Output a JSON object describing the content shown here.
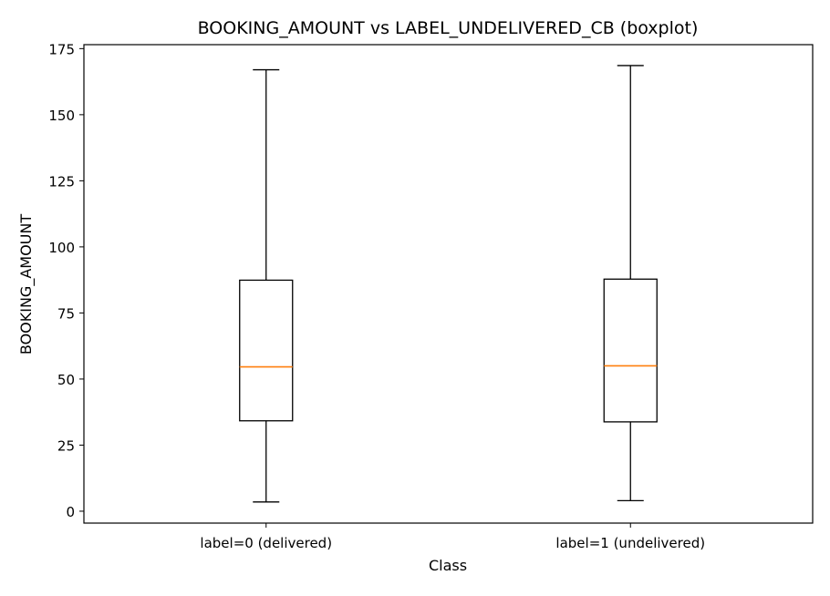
{
  "chart_data": {
    "type": "boxplot",
    "title": "BOOKING_AMOUNT vs LABEL_UNDELIVERED_CB (boxplot)",
    "xlabel": "Class",
    "ylabel": "BOOKING_AMOUNT",
    "ylim": [
      -4.5,
      176.5
    ],
    "yticks": [
      0,
      25,
      50,
      75,
      100,
      125,
      150,
      175
    ],
    "grid": false,
    "categories": [
      "label=0 (delivered)",
      "label=1 (undelivered)"
    ],
    "boxes": [
      {
        "category": "label=0 (delivered)",
        "whisker_low": 3.5,
        "q1": 34.2,
        "median": 54.6,
        "q3": 87.4,
        "whisker_high": 167.0
      },
      {
        "category": "label=1 (undelivered)",
        "whisker_low": 4.0,
        "q1": 33.8,
        "median": 55.0,
        "q3": 87.8,
        "whisker_high": 168.6
      }
    ],
    "colors": {
      "box": "#000000",
      "median": "#ff7f0e",
      "axes": "#000000"
    }
  }
}
